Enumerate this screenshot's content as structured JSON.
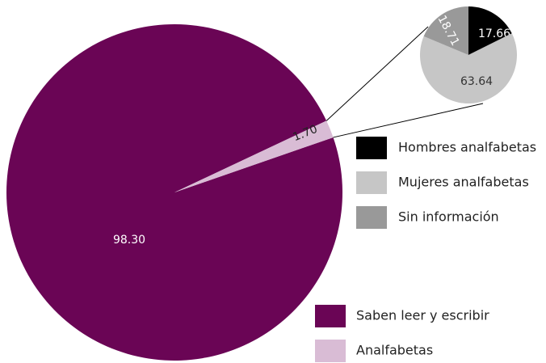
{
  "chart_data": [
    {
      "type": "pie",
      "categories": [
        "Saben leer y escribir",
        "Analfabetas"
      ],
      "values": [
        98.3,
        1.7
      ],
      "value_labels": [
        "98.30",
        "1.70"
      ],
      "colors": [
        "#6a0555",
        "#d9bcd5"
      ]
    },
    {
      "type": "pie",
      "categories": [
        "Hombres analfabetas",
        "Mujeres analfabetas",
        "Sin información"
      ],
      "values": [
        17.66,
        63.64,
        18.71
      ],
      "colors": [
        "#000000",
        "#c6c6c6",
        "#999999"
      ]
    }
  ]
}
